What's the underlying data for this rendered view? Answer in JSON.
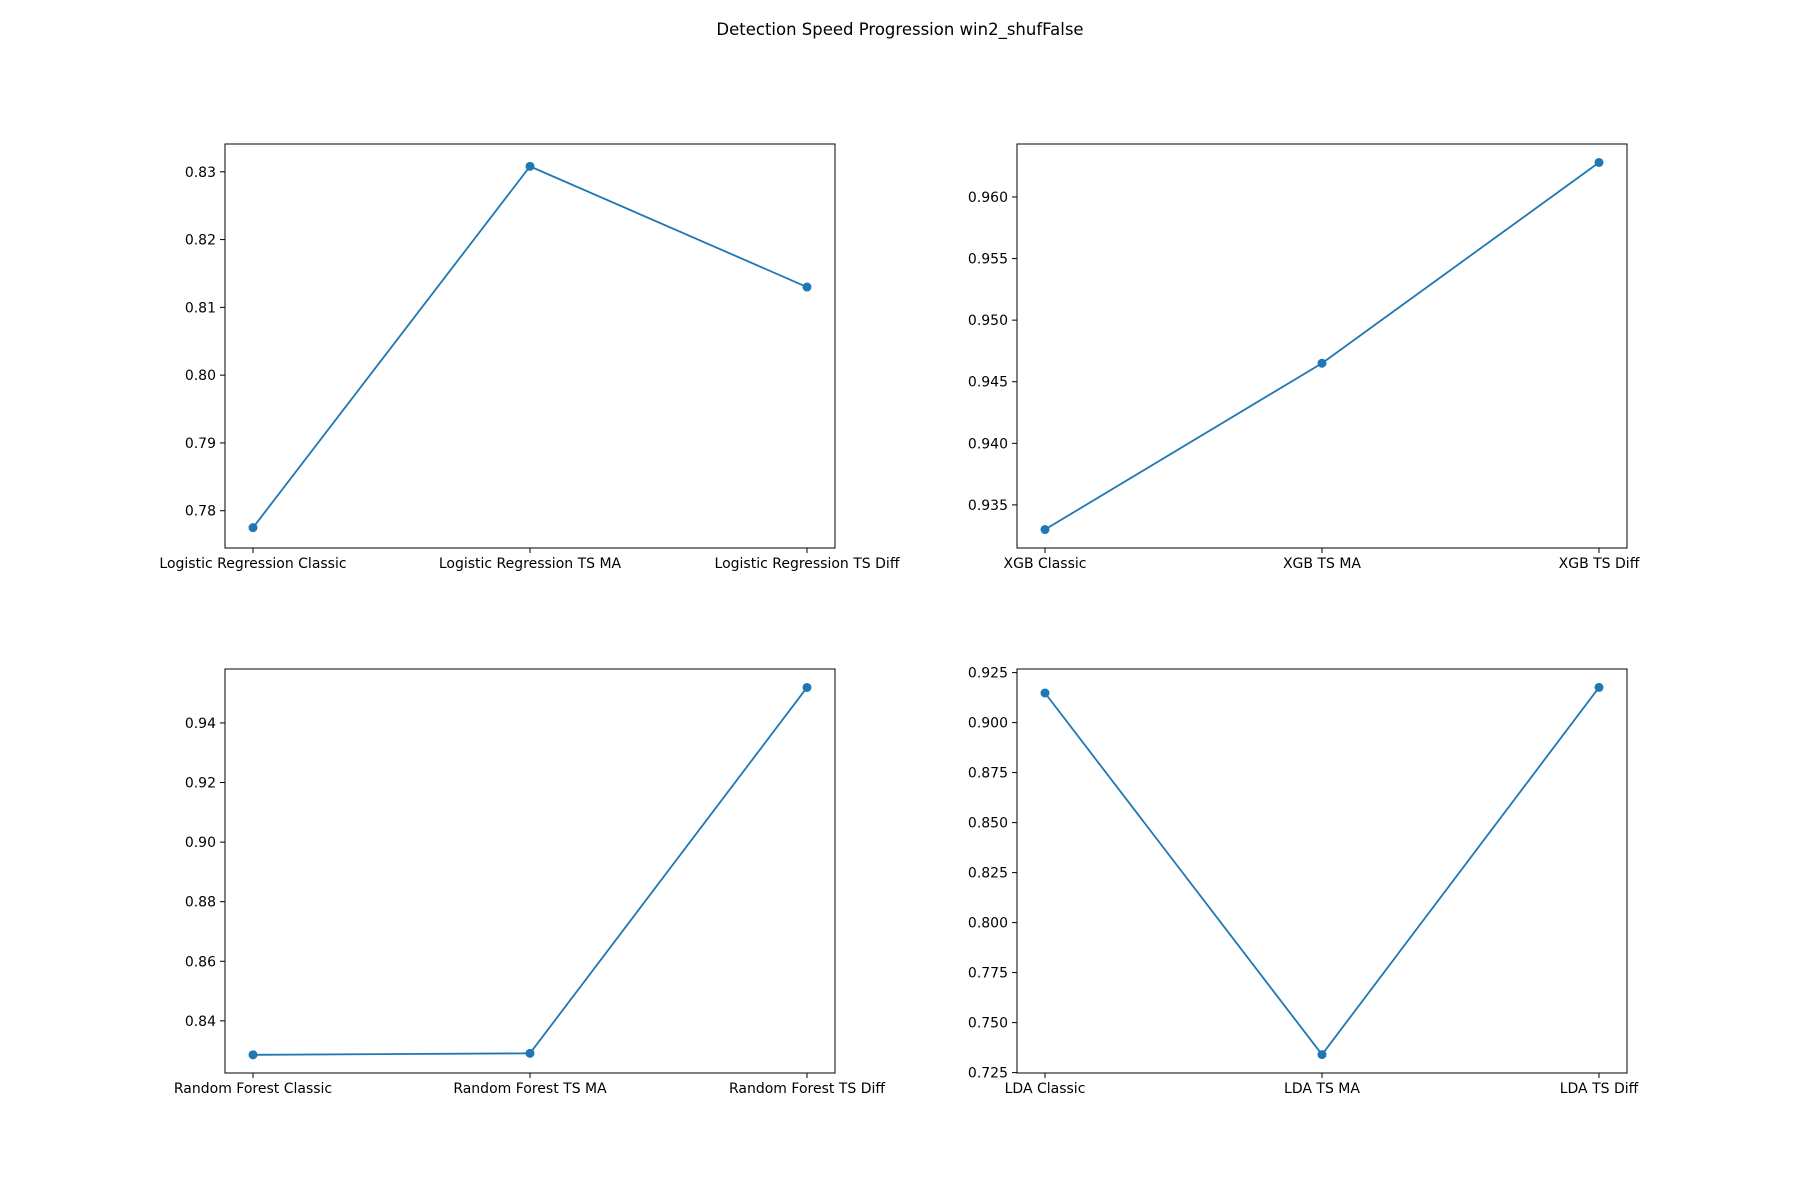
{
  "figure": {
    "title": "Detection Speed Progression win2_shufFalse",
    "line_color": "#1f77b4"
  },
  "chart_data": [
    {
      "type": "line",
      "categories": [
        "Logistic Regression Classic",
        "Logistic Regression TS MA",
        "Logistic Regression TS Diff"
      ],
      "values": [
        0.7775,
        0.8308,
        0.813
      ],
      "yticks": [
        "0.78",
        "0.79",
        "0.80",
        "0.81",
        "0.82",
        "0.83"
      ],
      "ylim": [
        0.7745,
        0.8341
      ],
      "title": "",
      "xlabel": "",
      "ylabel": "",
      "grid": false
    },
    {
      "type": "line",
      "categories": [
        "XGB Classic",
        "XGB TS MA",
        "XGB TS Diff"
      ],
      "values": [
        0.933,
        0.9465,
        0.9628
      ],
      "yticks": [
        "0.935",
        "0.940",
        "0.945",
        "0.950",
        "0.955",
        "0.960"
      ],
      "ylim": [
        0.9315,
        0.9643
      ],
      "title": "",
      "xlabel": "",
      "ylabel": "",
      "grid": false
    },
    {
      "type": "line",
      "categories": [
        "Random Forest Classic",
        "Random Forest TS MA",
        "Random Forest TS Diff"
      ],
      "values": [
        0.8286,
        0.8291,
        0.9519
      ],
      "yticks": [
        "0.84",
        "0.86",
        "0.88",
        "0.90",
        "0.92",
        "0.94"
      ],
      "ylim": [
        0.8225,
        0.9581
      ],
      "title": "",
      "xlabel": "",
      "ylabel": "",
      "grid": false
    },
    {
      "type": "line",
      "categories": [
        "LDA Classic",
        "LDA TS MA",
        "LDA TS Diff"
      ],
      "values": [
        0.9148,
        0.734,
        0.9176
      ],
      "yticks": [
        "0.725",
        "0.750",
        "0.775",
        "0.800",
        "0.825",
        "0.850",
        "0.875",
        "0.900",
        "0.925"
      ],
      "ylim": [
        0.7248,
        0.9268
      ],
      "title": "",
      "xlabel": "",
      "ylabel": "",
      "grid": false
    }
  ]
}
